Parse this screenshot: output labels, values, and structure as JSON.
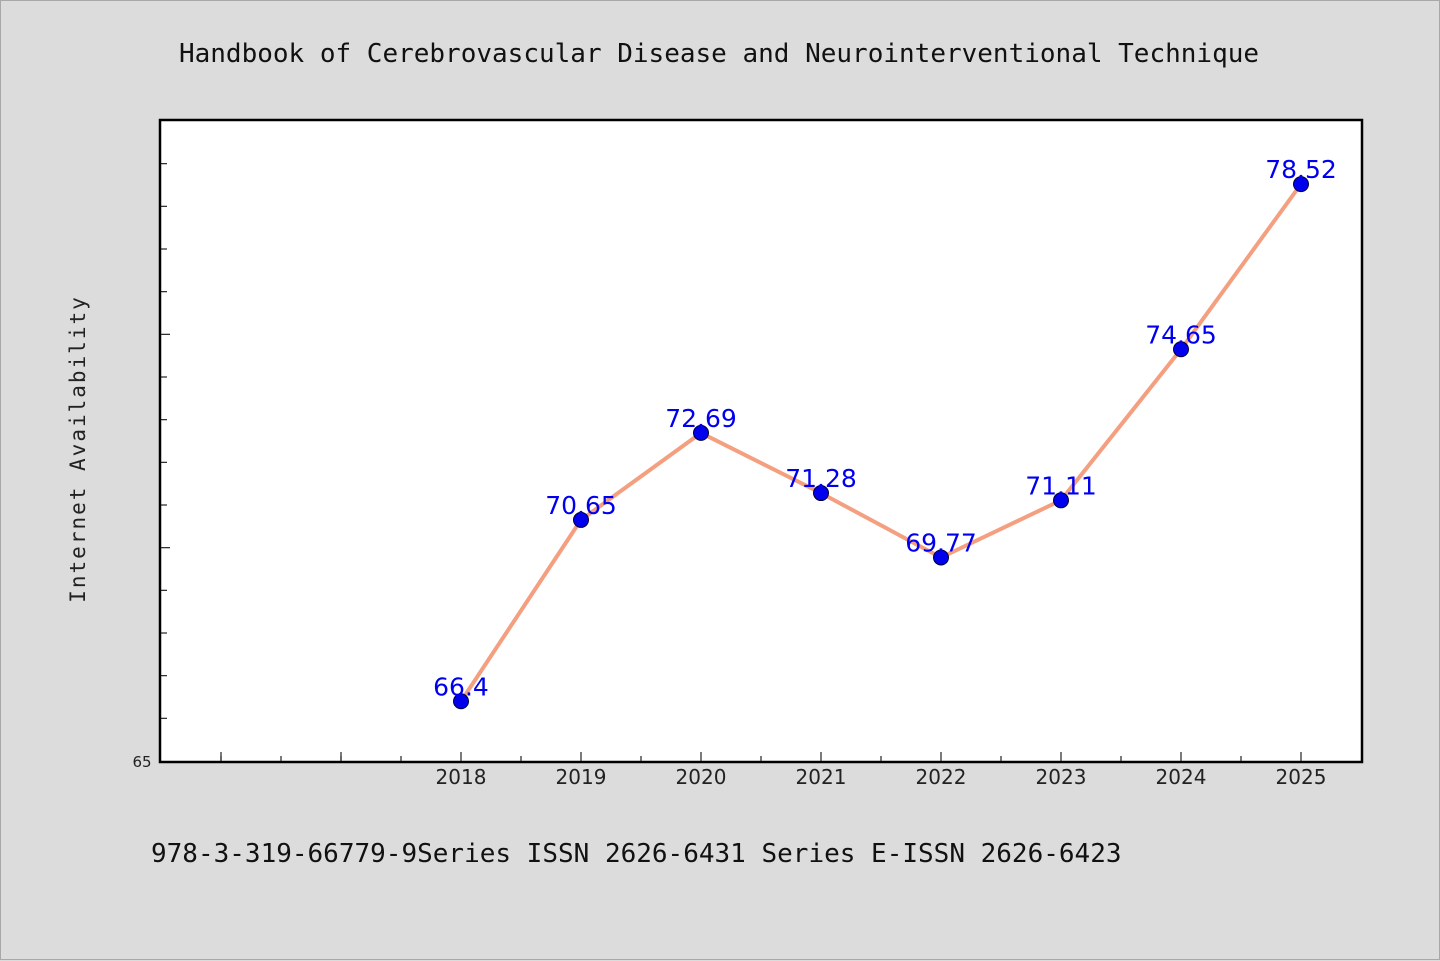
{
  "chart_data": {
    "type": "line",
    "title": "Handbook of Cerebrovascular Disease and Neurointerventional Technique",
    "ylabel": "Internet Availability",
    "xlabel": "",
    "x": [
      "2018",
      "2019",
      "2020",
      "2021",
      "2022",
      "2023",
      "2024",
      "2025"
    ],
    "series": [
      {
        "values": [
          66.4,
          70.65,
          72.69,
          71.28,
          69.77,
          71.11,
          74.65,
          78.52
        ]
      }
    ],
    "data_labels": [
      "66.4",
      "70.65",
      "72.69",
      "71.28",
      "69.77",
      "71.11",
      "74.65",
      "78.52"
    ],
    "y_min_label": "65",
    "ylim": [
      65,
      80
    ],
    "grid": false,
    "colors": {
      "line": "#f4a080",
      "marker": "#0000ee",
      "label": "#0000ee"
    }
  },
  "footer": {
    "text": "978-3-319-66779-9Series ISSN 2626-6431 Series E-ISSN 2626-6423"
  }
}
